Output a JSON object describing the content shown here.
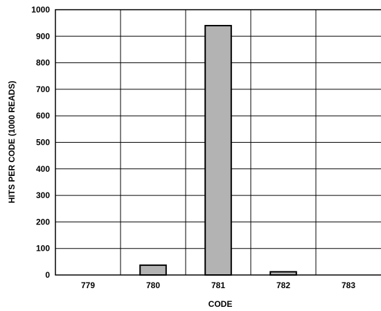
{
  "chart_data": {
    "type": "bar",
    "categories": [
      "779",
      "780",
      "781",
      "782",
      "783"
    ],
    "values": [
      0,
      37,
      940,
      12,
      0
    ],
    "yticks": [
      "0",
      "100",
      "200",
      "300",
      "400",
      "500",
      "600",
      "700",
      "800",
      "900",
      "1000"
    ],
    "xlabel": "CODE",
    "ylabel": "HITS PER CODE (1000 READS)",
    "ylim": [
      0,
      1000
    ],
    "grid": true,
    "bar_color": "#b3b3b3"
  }
}
